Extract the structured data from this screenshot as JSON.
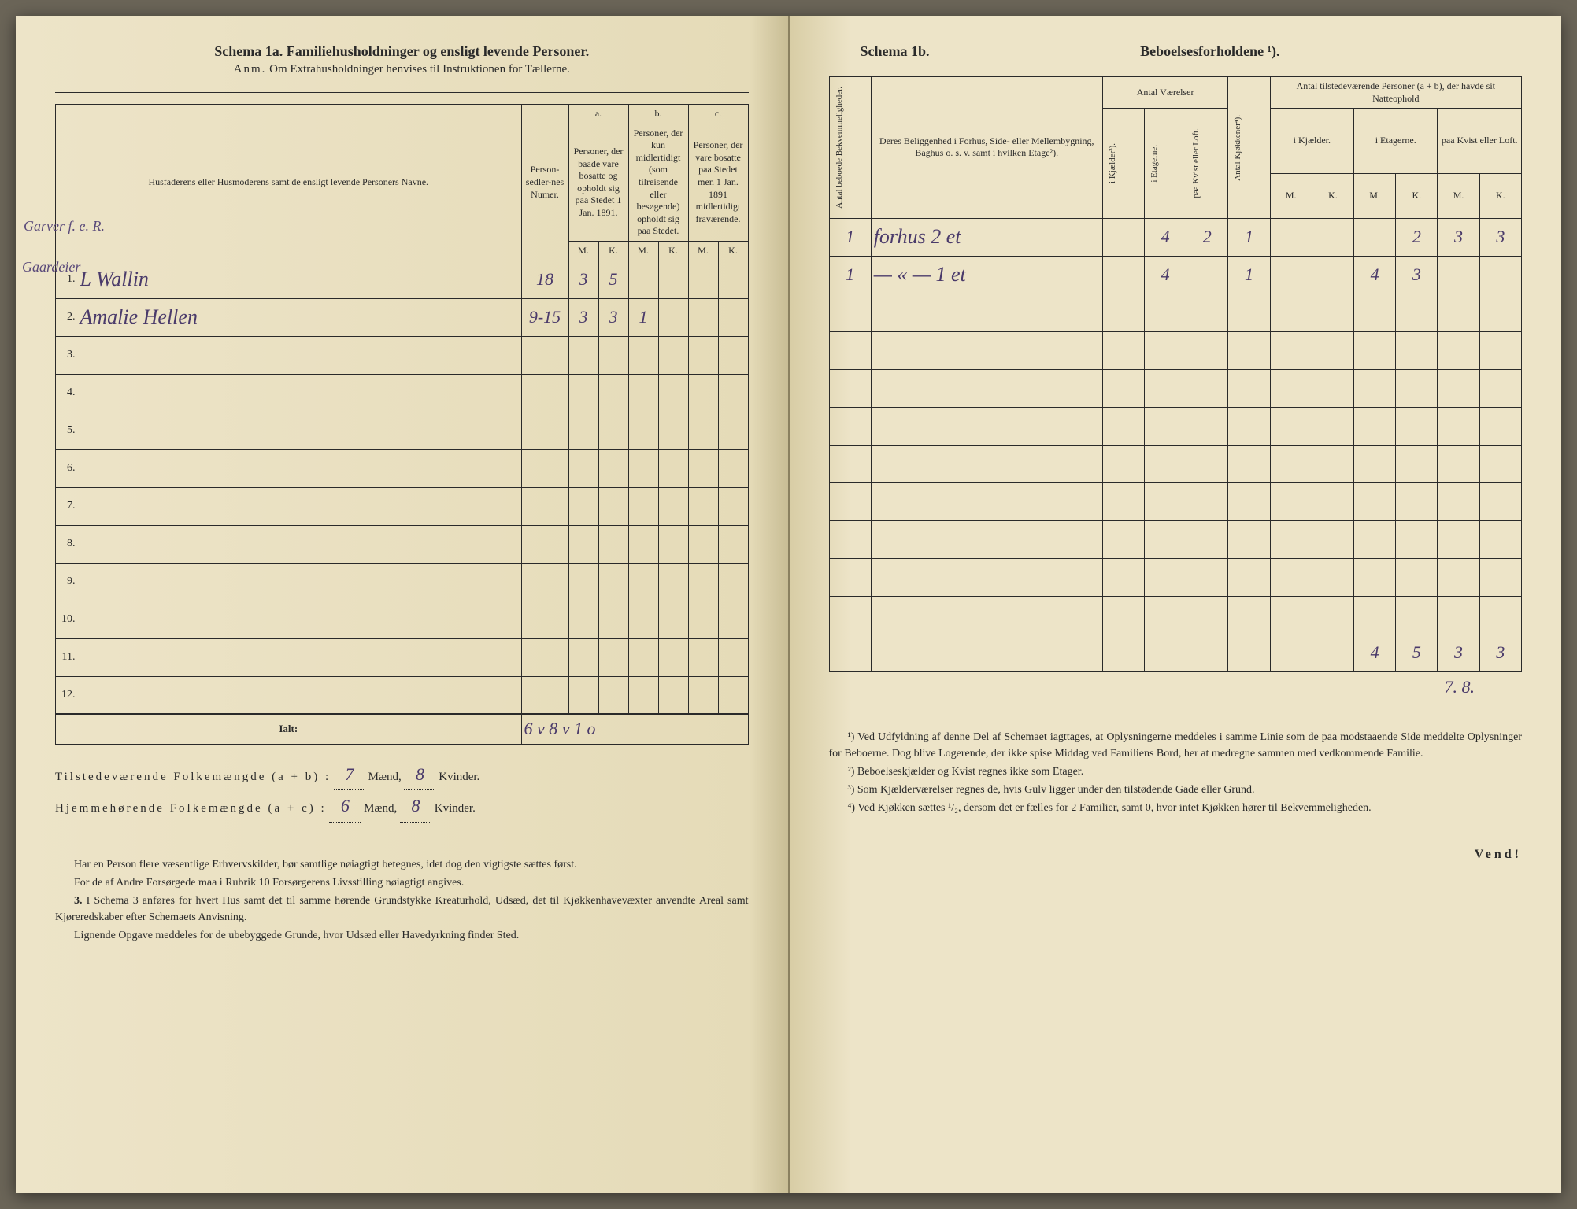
{
  "left": {
    "title": "Schema 1a.   Familiehusholdninger og ensligt levende Personer.",
    "subtitle_prefix": "Anm.",
    "subtitle": "Om Extrahusholdninger henvises til Instruktionen for Tællerne.",
    "headers": {
      "names": "Husfaderens eller Husmoderens samt de ensligt levende Personers Navne.",
      "numer": "Person-sedler-nes Numer.",
      "a": "a.",
      "a_text": "Personer, der baade vare bosatte og opholdt sig paa Stedet 1 Jan. 1891.",
      "b": "b.",
      "b_text": "Personer, der kun midlertidigt (som tilreisende eller besøgende) opholdt sig paa Stedet.",
      "c": "c.",
      "c_text": "Personer, der vare bosatte paa Stedet men 1 Jan. 1891 midlertidigt fraværende.",
      "M": "M.",
      "K": "K."
    },
    "margin1": "Garver\nf. e. R.",
    "margin2": "Gaardeier",
    "rows": [
      {
        "n": "1.",
        "name": "L Wallin",
        "numer": "18",
        "aM": "3",
        "aK": "5",
        "bM": "",
        "bK": "",
        "cM": "",
        "cK": ""
      },
      {
        "n": "2.",
        "name": "Amalie Hellen",
        "numer": "9-15",
        "aM": "3",
        "aK": "3",
        "bM": "1",
        "bK": "",
        "cM": "",
        "cK": ""
      },
      {
        "n": "3.",
        "name": "",
        "numer": "",
        "aM": "",
        "aK": "",
        "bM": "",
        "bK": "",
        "cM": "",
        "cK": ""
      },
      {
        "n": "4.",
        "name": "",
        "numer": "",
        "aM": "",
        "aK": "",
        "bM": "",
        "bK": "",
        "cM": "",
        "cK": ""
      },
      {
        "n": "5.",
        "name": "",
        "numer": "",
        "aM": "",
        "aK": "",
        "bM": "",
        "bK": "",
        "cM": "",
        "cK": ""
      },
      {
        "n": "6.",
        "name": "",
        "numer": "",
        "aM": "",
        "aK": "",
        "bM": "",
        "bK": "",
        "cM": "",
        "cK": ""
      },
      {
        "n": "7.",
        "name": "",
        "numer": "",
        "aM": "",
        "aK": "",
        "bM": "",
        "bK": "",
        "cM": "",
        "cK": ""
      },
      {
        "n": "8.",
        "name": "",
        "numer": "",
        "aM": "",
        "aK": "",
        "bM": "",
        "bK": "",
        "cM": "",
        "cK": ""
      },
      {
        "n": "9.",
        "name": "",
        "numer": "",
        "aM": "",
        "aK": "",
        "bM": "",
        "bK": "",
        "cM": "",
        "cK": ""
      },
      {
        "n": "10.",
        "name": "",
        "numer": "",
        "aM": "",
        "aK": "",
        "bM": "",
        "bK": "",
        "cM": "",
        "cK": ""
      },
      {
        "n": "11.",
        "name": "",
        "numer": "",
        "aM": "",
        "aK": "",
        "bM": "",
        "bK": "",
        "cM": "",
        "cK": ""
      },
      {
        "n": "12.",
        "name": "",
        "numer": "",
        "aM": "",
        "aK": "",
        "bM": "",
        "bK": "",
        "cM": "",
        "cK": ""
      }
    ],
    "ialt": "Ialt:",
    "ialt_hand": "6 v   8 v   1 o",
    "sum1_label": "Tilstedeværende Folkemængde (a + b) :",
    "sum1_m": "7",
    "sum1_k": "8",
    "sum2_label": "Hjemmehørende Folkemængde (a + c) :",
    "sum2_m": "6",
    "sum2_k": "8",
    "maend": "Mænd,",
    "kvinder": "Kvinder.",
    "foot1": "Har en Person flere væsentlige Erhvervskilder, bør samtlige nøiagtigt betegnes, idet dog den vigtigste sættes først.",
    "foot2": "For de af Andre Forsørgede maa i Rubrik 10 Forsørgerens Livsstilling nøiagtigt angives.",
    "foot3_num": "3.",
    "foot3": "I Schema 3 anføres for hvert Hus samt det til samme hørende Grundstykke Kreaturhold, Udsæd, det til Kjøkkenhavevæxter anvendte Areal samt Kjøreredskaber efter Schemaets Anvisning.",
    "foot4": "Lignende Opgave meddeles for de ubebyggede Grunde, hvor Udsæd eller Havedyrkning finder Sted."
  },
  "right": {
    "title_a": "Schema 1b.",
    "title_b": "Beboelsesforholdene ¹).",
    "headers": {
      "antal_bekv": "Antal beboede Bekvemmeligheder.",
      "belig": "Deres Beliggenhed i Forhus, Side- eller Mellembygning, Baghus o. s. v. samt i hvilken Etage²).",
      "vaer": "Antal Værelser",
      "kjok": "Antal Kjøkkener⁴).",
      "tilst": "Antal tilstedeværende Personer (a + b), der havde sit Natteophold",
      "kjael": "i Kjælder³).",
      "etag": "i Etagerne.",
      "kvist": "paa Kvist eller Loft.",
      "ikjael": "i Kjælder.",
      "ietag": "i Etagerne.",
      "paakvist": "paa Kvist eller Loft.",
      "M": "M.",
      "K": "K."
    },
    "rows": [
      {
        "bekv": "1",
        "belig": "forhus 2 et",
        "kj": "",
        "et": "4",
        "kv": "2",
        "kjok": "1",
        "kM": "",
        "kK": "",
        "eM": "",
        "eK": "2",
        "lM": "3",
        "lK": "3"
      },
      {
        "bekv": "1",
        "belig": "— « — 1 et",
        "kj": "",
        "et": "4",
        "kv": "",
        "kjok": "1",
        "kM": "",
        "kK": "",
        "eM": "4",
        "eK": "3",
        "lM": "",
        "lK": ""
      },
      {
        "bekv": "",
        "belig": "",
        "kj": "",
        "et": "",
        "kv": "",
        "kjok": "",
        "kM": "",
        "kK": "",
        "eM": "",
        "eK": "",
        "lM": "",
        "lK": ""
      },
      {
        "bekv": "",
        "belig": "",
        "kj": "",
        "et": "",
        "kv": "",
        "kjok": "",
        "kM": "",
        "kK": "",
        "eM": "",
        "eK": "",
        "lM": "",
        "lK": ""
      },
      {
        "bekv": "",
        "belig": "",
        "kj": "",
        "et": "",
        "kv": "",
        "kjok": "",
        "kM": "",
        "kK": "",
        "eM": "",
        "eK": "",
        "lM": "",
        "lK": ""
      },
      {
        "bekv": "",
        "belig": "",
        "kj": "",
        "et": "",
        "kv": "",
        "kjok": "",
        "kM": "",
        "kK": "",
        "eM": "",
        "eK": "",
        "lM": "",
        "lK": ""
      },
      {
        "bekv": "",
        "belig": "",
        "kj": "",
        "et": "",
        "kv": "",
        "kjok": "",
        "kM": "",
        "kK": "",
        "eM": "",
        "eK": "",
        "lM": "",
        "lK": ""
      },
      {
        "bekv": "",
        "belig": "",
        "kj": "",
        "et": "",
        "kv": "",
        "kjok": "",
        "kM": "",
        "kK": "",
        "eM": "",
        "eK": "",
        "lM": "",
        "lK": ""
      },
      {
        "bekv": "",
        "belig": "",
        "kj": "",
        "et": "",
        "kv": "",
        "kjok": "",
        "kM": "",
        "kK": "",
        "eM": "",
        "eK": "",
        "lM": "",
        "lK": ""
      },
      {
        "bekv": "",
        "belig": "",
        "kj": "",
        "et": "",
        "kv": "",
        "kjok": "",
        "kM": "",
        "kK": "",
        "eM": "",
        "eK": "",
        "lM": "",
        "lK": ""
      },
      {
        "bekv": "",
        "belig": "",
        "kj": "",
        "et": "",
        "kv": "",
        "kjok": "",
        "kM": "",
        "kK": "",
        "eM": "",
        "eK": "",
        "lM": "",
        "lK": ""
      },
      {
        "bekv": "",
        "belig": "",
        "kj": "",
        "et": "",
        "kv": "",
        "kjok": "",
        "kM": "",
        "kK": "",
        "eM": "4",
        "eK": "5",
        "lM": "3",
        "lK": "3"
      }
    ],
    "below_hand": "7.   8.",
    "fn1": "¹) Ved Udfyldning af denne Del af Schemaet iagttages, at Oplysningerne meddeles i samme Linie som de paa modstaaende Side meddelte Oplysninger for Beboerne. Dog blive Logerende, der ikke spise Middag ved Familiens Bord, her at medregne sammen med vedkommende Familie.",
    "fn2": "²) Beboelseskjælder og Kvist regnes ikke som Etager.",
    "fn3": "³) Som Kjælderværelser regnes de, hvis Gulv ligger under den tilstødende Gade eller Grund.",
    "fn4": "⁴) Ved Kjøkken sættes ¹/₂, dersom det er fælles for 2 Familier, samt 0, hvor intet Kjøkken hører til Bekvemmeligheden.",
    "vend": "Vend!"
  },
  "colors": {
    "ink": "#2a2a2a",
    "hand": "#4a3a6a",
    "paper": "#ede4c8"
  }
}
